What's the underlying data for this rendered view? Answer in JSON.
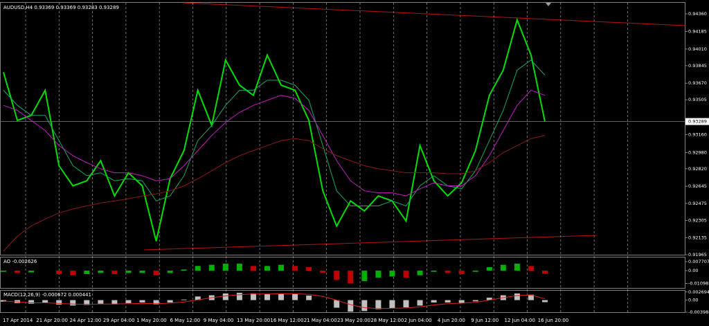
{
  "chart_data": [
    {
      "type": "line",
      "title": "AUDUSD,H4  0.93369 0.93369 0.93283 0.93289",
      "ylim": [
        0.91965,
        0.94463
      ],
      "yticks": [
        {
          "value": 0.9436,
          "label": "0.94360"
        },
        {
          "value": 0.94185,
          "label": "0.94185"
        },
        {
          "value": 0.9401,
          "label": "0.94010"
        },
        {
          "value": 0.93845,
          "label": "0.93845"
        },
        {
          "value": 0.9367,
          "label": "0.93670"
        },
        {
          "value": 0.93505,
          "label": "0.93505"
        },
        {
          "value": 0.9316,
          "label": "0.93160"
        },
        {
          "value": 0.9298,
          "label": "0.92980"
        },
        {
          "value": 0.9282,
          "label": "0.92820"
        },
        {
          "value": 0.92645,
          "label": "0.92645"
        },
        {
          "value": 0.92475,
          "label": "0.92475"
        },
        {
          "value": 0.92305,
          "label": "0.92305"
        },
        {
          "value": 0.92135,
          "label": "0.92135"
        },
        {
          "value": 0.91965,
          "label": "0.91965"
        }
      ],
      "current_price": {
        "value": 0.93289,
        "label": "0.93289"
      },
      "time_labels": [
        "17 Apr 2014",
        "21 Apr 20:00",
        "24 Apr 12:00",
        "29 Apr 04:00",
        "1 May 20:00",
        "6 May 12:00",
        "9 May 04:00",
        "13 May 20:00",
        "16 May 12:00",
        "21 May 04:00",
        "23 May 20:00",
        "28 May 12:00",
        "2 Jun 04:00",
        "4 Jun 20:00",
        "9 Jun 12:00",
        "12 Jun 04:00",
        "16 Jun 20:00"
      ],
      "grid": true,
      "series": [
        {
          "color": "#00e000",
          "values": [
            0.9378,
            0.933,
            0.9335,
            0.936,
            0.9285,
            0.9265,
            0.927,
            0.929,
            0.9255,
            0.9278,
            0.9265,
            0.921,
            0.9272,
            0.93,
            0.936,
            0.9325,
            0.939,
            0.9365,
            0.9355,
            0.9395,
            0.9365,
            0.936,
            0.933,
            0.926,
            0.9225,
            0.925,
            0.924,
            0.9255,
            0.925,
            0.923,
            0.9305,
            0.927,
            0.9255,
            0.9268,
            0.93,
            0.9355,
            0.938,
            0.943,
            0.9395,
            0.93289
          ]
        },
        {
          "color": "#18a868",
          "values": [
            0.936,
            0.9345,
            0.9335,
            0.9335,
            0.931,
            0.9285,
            0.9275,
            0.9278,
            0.927,
            0.9272,
            0.927,
            0.925,
            0.9255,
            0.9275,
            0.931,
            0.9325,
            0.9345,
            0.936,
            0.936,
            0.937,
            0.937,
            0.9365,
            0.935,
            0.9305,
            0.926,
            0.9245,
            0.9245,
            0.9245,
            0.925,
            0.9245,
            0.9265,
            0.9275,
            0.9265,
            0.9262,
            0.928,
            0.931,
            0.934,
            0.938,
            0.939,
            0.9375
          ]
        },
        {
          "color": "#c020c0",
          "values": [
            0.9345,
            0.934,
            0.933,
            0.932,
            0.9305,
            0.9295,
            0.9288,
            0.9282,
            0.9278,
            0.9278,
            0.9275,
            0.927,
            0.9272,
            0.9285,
            0.93,
            0.9315,
            0.9328,
            0.9338,
            0.9345,
            0.935,
            0.9355,
            0.9352,
            0.934,
            0.9315,
            0.929,
            0.927,
            0.926,
            0.9258,
            0.9258,
            0.9255,
            0.9262,
            0.9268,
            0.9265,
            0.9265,
            0.9275,
            0.9295,
            0.932,
            0.9345,
            0.936,
            0.9355
          ]
        },
        {
          "color": "#8b1a1a",
          "values": [
            0.92,
            0.9215,
            0.9225,
            0.9232,
            0.9238,
            0.9242,
            0.9245,
            0.9248,
            0.925,
            0.9252,
            0.9255,
            0.9257,
            0.926,
            0.9265,
            0.9272,
            0.928,
            0.9288,
            0.9295,
            0.93,
            0.9305,
            0.931,
            0.9312,
            0.931,
            0.9302,
            0.9295,
            0.929,
            0.9285,
            0.9282,
            0.928,
            0.9278,
            0.9278,
            0.9278,
            0.9277,
            0.9277,
            0.928,
            0.9288,
            0.9298,
            0.9305,
            0.9312,
            0.9315
          ]
        }
      ]
    },
    {
      "type": "bar",
      "title": "AO -0.002626",
      "ylim": [
        -0.01483,
        0.01127
      ],
      "yticks": [
        {
          "value": 0.007707,
          "label": "0.007707"
        },
        {
          "value": 0,
          "label": "0.00"
        },
        {
          "value": -0.010983,
          "label": "-0.010983"
        }
      ],
      "up_color": "#00b000",
      "down_color": "#c00000",
      "values": [
        -0.001,
        -0.002,
        -0.0015,
        0,
        -0.003,
        -0.004,
        -0.003,
        -0.002,
        -0.003,
        -0.002,
        -0.002,
        -0.004,
        -0.002,
        0.001,
        0.004,
        0.005,
        0.006,
        0.006,
        0.004,
        0.004,
        0.005,
        0.004,
        0.003,
        -0.002,
        -0.008,
        -0.011,
        -0.009,
        -0.006,
        -0.005,
        -0.006,
        -0.004,
        -0.001,
        -0.002,
        -0.003,
        -0.001,
        0.003,
        0.005,
        0.006,
        0.004,
        -0.002626
      ]
    },
    {
      "type": "macd",
      "title": "MACD(12,26,9) -0.000672 0.000441",
      "ylim": [
        -0.0042,
        0.0031
      ],
      "yticks": [
        {
          "value": 0.002694,
          "label": "0.002694"
        },
        {
          "value": 0,
          "label": "0.00"
        },
        {
          "value": -0.003988,
          "label": "-0.003988"
        }
      ],
      "color": "#c0c0c0",
      "signal_color": "#e02020",
      "values": [
        -0.0005,
        -0.001,
        -0.0012,
        -0.0008,
        -0.0015,
        -0.0018,
        -0.0016,
        -0.0012,
        -0.0014,
        -0.001,
        -0.0008,
        -0.0014,
        -0.0008,
        0.0002,
        0.0012,
        0.0016,
        0.0022,
        0.0024,
        0.0022,
        0.002,
        0.0022,
        0.002,
        0.0015,
        0,
        -0.0025,
        -0.0038,
        -0.0036,
        -0.003,
        -0.0026,
        -0.0024,
        -0.0018,
        -0.0008,
        -0.0008,
        -0.0009,
        -0.0004,
        0.0008,
        0.0016,
        0.0022,
        0.0018,
        -0.000672
      ],
      "signal": [
        -0.0003,
        -0.0006,
        -0.0009,
        -0.0009,
        -0.0011,
        -0.0013,
        -0.0014,
        -0.0013,
        -0.0013,
        -0.0012,
        -0.0011,
        -0.0012,
        -0.001,
        -0.0006,
        0.0001,
        0.0008,
        0.0014,
        0.0018,
        0.002,
        0.002,
        0.0021,
        0.0021,
        0.0019,
        0.0012,
        0,
        -0.0015,
        -0.0025,
        -0.0028,
        -0.0027,
        -0.0026,
        -0.0022,
        -0.0016,
        -0.0012,
        -0.001,
        -0.0007,
        0,
        0.0008,
        0.0015,
        0.0017,
        0.000441
      ]
    }
  ]
}
